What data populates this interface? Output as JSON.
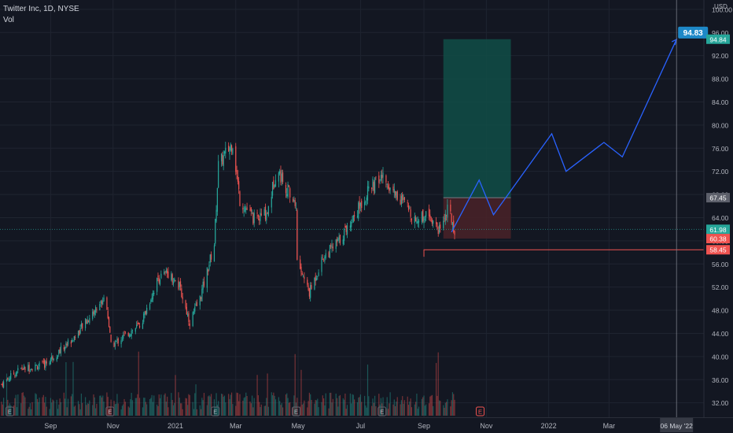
{
  "legend": {
    "symbol": "Twitter Inc, 1D, NYSE",
    "volume_label": "Vol"
  },
  "currency": "USD",
  "colors": {
    "background": "#131722",
    "grid": "#1f2430",
    "up": "#26a69a",
    "down": "#ef5350",
    "projection": "#2962ff",
    "profit_zone": "#114d47",
    "loss_zone": "#4a2228",
    "target_badge": "#1e88c7",
    "axis_text": "#b2b5be",
    "separator": "#787b86"
  },
  "chart_data": {
    "type": "candlestick",
    "y_axis": {
      "ticks": [
        "100.00",
        "96.00",
        "92.00",
        "88.00",
        "84.00",
        "80.00",
        "76.00",
        "72.00",
        "68.00",
        "64.00",
        "60.00",
        "56.00",
        "52.00",
        "48.00",
        "44.00",
        "40.00",
        "36.00",
        "32.00"
      ],
      "range": [
        31,
        101
      ]
    },
    "x_axis": {
      "ticks": [
        "Sep",
        "Nov",
        "2021",
        "Mar",
        "May",
        "Jul",
        "Sep",
        "Nov",
        "2022",
        "Mar"
      ],
      "range": [
        "2020-07-15",
        "2022-06-01"
      ],
      "crosshair_date_label": "06 May '22"
    },
    "price_labels": [
      {
        "value": 94.84,
        "text": "94.84",
        "kind": "target"
      },
      {
        "value": 67.45,
        "text": "67.45",
        "kind": "entry"
      },
      {
        "value": 61.98,
        "text": "61.98",
        "kind": "last"
      },
      {
        "value": 60.38,
        "text": "60.38",
        "kind": "stop"
      },
      {
        "value": 58.45,
        "text": "58.45",
        "kind": "support"
      }
    ],
    "target_badge": {
      "date": "2022-05-06",
      "value": 94.83,
      "text": "94.83"
    },
    "position": {
      "start": "2021-09-20",
      "end": "2021-11-25",
      "entry": 67.45,
      "target": 94.84,
      "stop": 60.38
    },
    "support_line": {
      "start": "2021-09-01",
      "end": "2022-06-01",
      "value": 58.45
    },
    "projection_path": [
      {
        "date": "2021-09-28",
        "value": 61.5
      },
      {
        "date": "2021-10-25",
        "value": 70.5
      },
      {
        "date": "2021-11-08",
        "value": 64.5
      },
      {
        "date": "2022-01-04",
        "value": 78.5
      },
      {
        "date": "2022-01-18",
        "value": 72.0
      },
      {
        "date": "2022-02-24",
        "value": 77.0
      },
      {
        "date": "2022-03-14",
        "value": 74.5
      },
      {
        "date": "2022-05-06",
        "value": 94.8
      }
    ],
    "earnings_dates": [
      "2020-07-23",
      "2020-10-29",
      "2021-02-09",
      "2021-04-29",
      "2021-07-22",
      "2021-10-26"
    ],
    "price_path": [
      {
        "date": "2020-07-15",
        "value": 35.2
      },
      {
        "date": "2020-08-01",
        "value": 37.8
      },
      {
        "date": "2020-08-25",
        "value": 38.5
      },
      {
        "date": "2020-09-10",
        "value": 41.0
      },
      {
        "date": "2020-09-25",
        "value": 43.5
      },
      {
        "date": "2020-10-10",
        "value": 47.0
      },
      {
        "date": "2020-10-25",
        "value": 50.5
      },
      {
        "date": "2020-10-30",
        "value": 41.8
      },
      {
        "date": "2020-11-15",
        "value": 44.0
      },
      {
        "date": "2020-11-28",
        "value": 45.5
      },
      {
        "date": "2020-12-15",
        "value": 53.5
      },
      {
        "date": "2020-12-25",
        "value": 54.5
      },
      {
        "date": "2021-01-05",
        "value": 52.0
      },
      {
        "date": "2021-01-15",
        "value": 46.0
      },
      {
        "date": "2021-01-25",
        "value": 50.0
      },
      {
        "date": "2021-02-08",
        "value": 59.5
      },
      {
        "date": "2021-02-12",
        "value": 73.0
      },
      {
        "date": "2021-02-26",
        "value": 77.0
      },
      {
        "date": "2021-03-05",
        "value": 67.0
      },
      {
        "date": "2021-03-20",
        "value": 63.5
      },
      {
        "date": "2021-04-01",
        "value": 65.0
      },
      {
        "date": "2021-04-10",
        "value": 72.5
      },
      {
        "date": "2021-04-29",
        "value": 66.0
      },
      {
        "date": "2021-04-30",
        "value": 56.5
      },
      {
        "date": "2021-05-12",
        "value": 51.0
      },
      {
        "date": "2021-05-25",
        "value": 57.0
      },
      {
        "date": "2021-06-10",
        "value": 60.0
      },
      {
        "date": "2021-06-25",
        "value": 64.5
      },
      {
        "date": "2021-07-10",
        "value": 69.0
      },
      {
        "date": "2021-07-22",
        "value": 71.0
      },
      {
        "date": "2021-08-10",
        "value": 67.0
      },
      {
        "date": "2021-08-25",
        "value": 63.5
      },
      {
        "date": "2021-09-05",
        "value": 65.0
      },
      {
        "date": "2021-09-15",
        "value": 62.0
      },
      {
        "date": "2021-09-25",
        "value": 65.5
      },
      {
        "date": "2021-10-01",
        "value": 61.98
      }
    ]
  }
}
